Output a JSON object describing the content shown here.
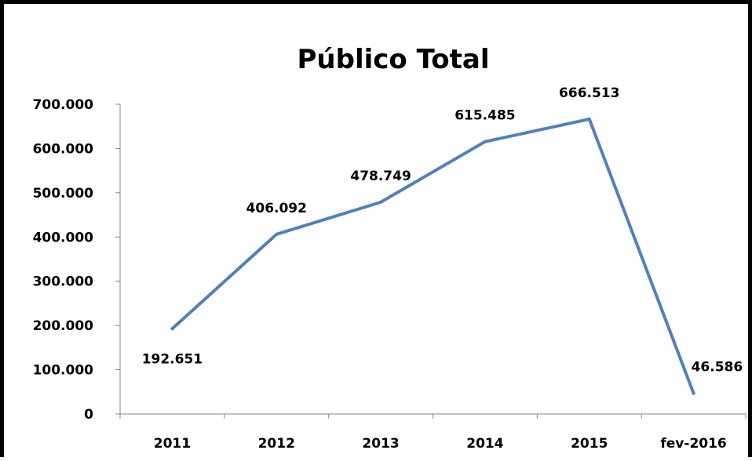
{
  "chart_data": {
    "type": "line",
    "title": "Público Total",
    "xlabel": "",
    "ylabel": "",
    "categories": [
      "2011",
      "2012",
      "2013",
      "2014",
      "2015",
      "fev-2016"
    ],
    "series": [
      {
        "values": [
          192651,
          406092,
          478749,
          615485,
          666513,
          46586
        ],
        "data_labels": [
          "192.651",
          "406.092",
          "478.749",
          "615.485",
          "666.513",
          "46.586"
        ],
        "color": "#4F81BD"
      }
    ],
    "y_ticks": [
      "0",
      "100.000",
      "200.000",
      "300.000",
      "400.000",
      "500.000",
      "600.000",
      "700.000"
    ],
    "ylim": [
      0,
      700000
    ],
    "grid": false,
    "legend": "none"
  }
}
